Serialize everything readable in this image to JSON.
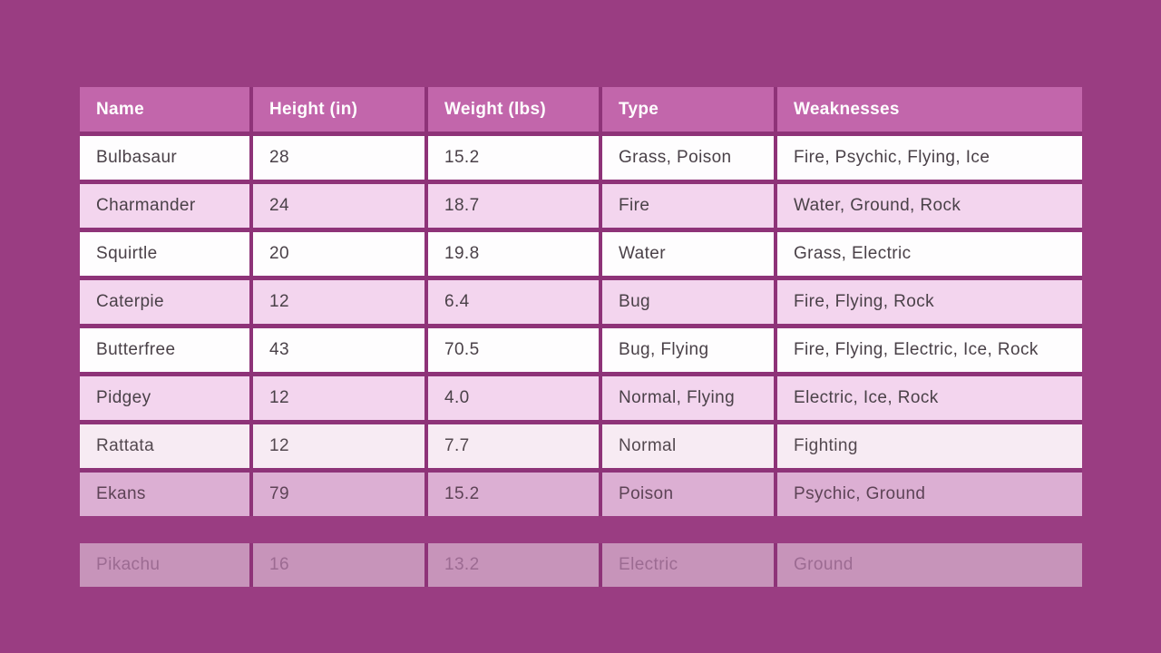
{
  "page": {
    "description": "Pokemon stats data table on magenta background, rows animating in"
  },
  "chart_data": {
    "type": "table",
    "columns": [
      "Name",
      "Height (in)",
      "Weight (lbs)",
      "Type",
      "Weaknesses"
    ],
    "rows": [
      {
        "name": "Bulbasaur",
        "height": "28",
        "weight": "15.2",
        "type": "Grass, Poison",
        "weaknesses": "Fire, Psychic, Flying, Ice"
      },
      {
        "name": "Charmander",
        "height": "24",
        "weight": "18.7",
        "type": "Fire",
        "weaknesses": "Water, Ground, Rock"
      },
      {
        "name": "Squirtle",
        "height": "20",
        "weight": "19.8",
        "type": "Water",
        "weaknesses": "Grass, Electric"
      },
      {
        "name": "Caterpie",
        "height": "12",
        "weight": "6.4",
        "type": "Bug",
        "weaknesses": "Fire, Flying, Rock"
      },
      {
        "name": "Butterfree",
        "height": "43",
        "weight": "70.5",
        "type": "Bug, Flying",
        "weaknesses": "Fire, Flying, Electric, Ice, Rock"
      },
      {
        "name": "Pidgey",
        "height": "12",
        "weight": "4.0",
        "type": "Normal, Flying",
        "weaknesses": "Electric, Ice, Rock"
      },
      {
        "name": "Rattata",
        "height": "12",
        "weight": "7.7",
        "type": "Normal",
        "weaknesses": "Fighting"
      },
      {
        "name": "Ekans",
        "height": "79",
        "weight": "15.2",
        "type": "Poison",
        "weaknesses": "Psychic, Ground"
      },
      {
        "name": "Pikachu",
        "height": "16",
        "weight": "13.2",
        "type": "Electric",
        "weaknesses": "Ground"
      }
    ],
    "fading_in_rows": [
      "Rattata",
      "Ekans",
      "Pikachu"
    ]
  },
  "colors": {
    "background": "#9a3d82",
    "grid_gap_line": "#8e3378",
    "header_bg": "#c266ab",
    "header_text": "#ffffff",
    "row_white_bg": "#fefdfe",
    "row_pink_bg": "#f3d5ee",
    "body_text": "#4a4148",
    "row_rattata_bg": "#f7ebf3",
    "row_ekans_bg": "#dcafd3",
    "row_ekans_text": "#5d4356",
    "row_pikachu_bg": "#c794ba",
    "row_pikachu_text": "#9c6b92"
  }
}
